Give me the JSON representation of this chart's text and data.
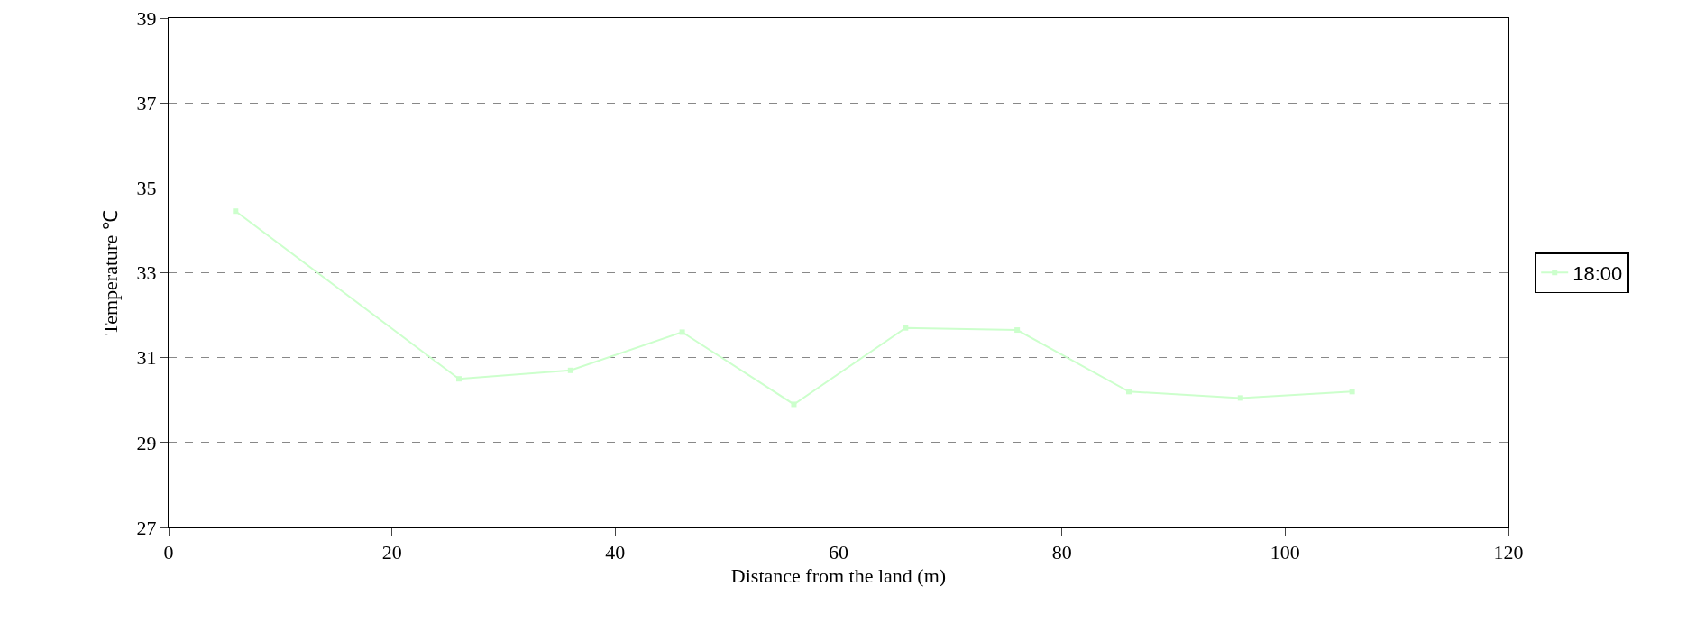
{
  "chart_data": {
    "type": "line",
    "xlabel": "Distance from the land (m)",
    "ylabel": "Temperature ℃",
    "x": [
      6,
      26,
      36,
      46,
      56,
      66,
      76,
      86,
      96,
      106
    ],
    "series": [
      {
        "name": "18:00",
        "color": "#ccffcc",
        "values": [
          34.45,
          30.5,
          30.7,
          31.6,
          29.9,
          31.7,
          31.65,
          30.2,
          30.05,
          30.2
        ]
      }
    ],
    "xlim": [
      0,
      120
    ],
    "xticks": [
      0,
      20,
      40,
      60,
      80,
      100,
      120
    ],
    "ylim": [
      27,
      39
    ],
    "yticks": [
      27,
      29,
      31,
      33,
      35,
      37,
      39
    ],
    "grid": "y",
    "legend": "right",
    "marker": "square",
    "line_style": "solid"
  }
}
